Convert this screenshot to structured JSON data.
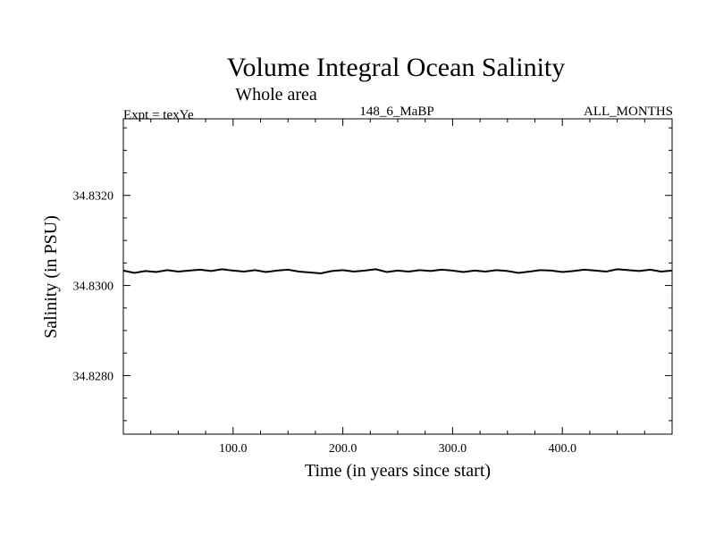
{
  "chart_data": {
    "type": "line",
    "title": "Volume Integral Ocean Salinity",
    "subtitle": "Whole area",
    "annotations": {
      "left": "Expt = texYe",
      "center": "148_6_MaBP",
      "right": "ALL_MONTHS"
    },
    "xlabel": "Time (in years since start)",
    "ylabel": "Salinity (in PSU)",
    "xlim": [
      0,
      500
    ],
    "ylim": [
      34.8267,
      34.8337
    ],
    "x_ticks": [
      100,
      200,
      300,
      400
    ],
    "x_tick_labels": [
      "100.0",
      "200.0",
      "300.0",
      "400.0"
    ],
    "y_ticks": [
      34.828,
      34.83,
      34.832
    ],
    "y_tick_labels": [
      "34.8280",
      "34.8300",
      "34.8320"
    ],
    "grid": false,
    "series": [
      {
        "x": [
          0,
          10,
          20,
          30,
          40,
          50,
          60,
          70,
          80,
          90,
          100,
          110,
          120,
          130,
          140,
          150,
          160,
          170,
          180,
          190,
          200,
          210,
          220,
          230,
          240,
          250,
          260,
          270,
          280,
          290,
          300,
          310,
          320,
          330,
          340,
          350,
          360,
          370,
          380,
          390,
          400,
          410,
          420,
          430,
          440,
          450,
          460,
          470,
          480,
          490,
          500
        ],
        "y": [
          34.83033,
          34.83028,
          34.83032,
          34.8303,
          34.83034,
          34.83031,
          34.83033,
          34.83035,
          34.83032,
          34.83036,
          34.83033,
          34.83031,
          34.83034,
          34.8303,
          34.83033,
          34.83035,
          34.83031,
          34.83029,
          34.83027,
          34.83032,
          34.83034,
          34.83031,
          34.83033,
          34.83036,
          34.8303,
          34.83033,
          34.83031,
          34.83034,
          34.83032,
          34.83035,
          34.83033,
          34.8303,
          34.83033,
          34.83031,
          34.83034,
          34.83032,
          34.83028,
          34.83031,
          34.83034,
          34.83033,
          34.8303,
          34.83032,
          34.83035,
          34.83033,
          34.83031,
          34.83036,
          34.83034,
          34.83032,
          34.83035,
          34.83031,
          34.83033
        ]
      }
    ]
  }
}
